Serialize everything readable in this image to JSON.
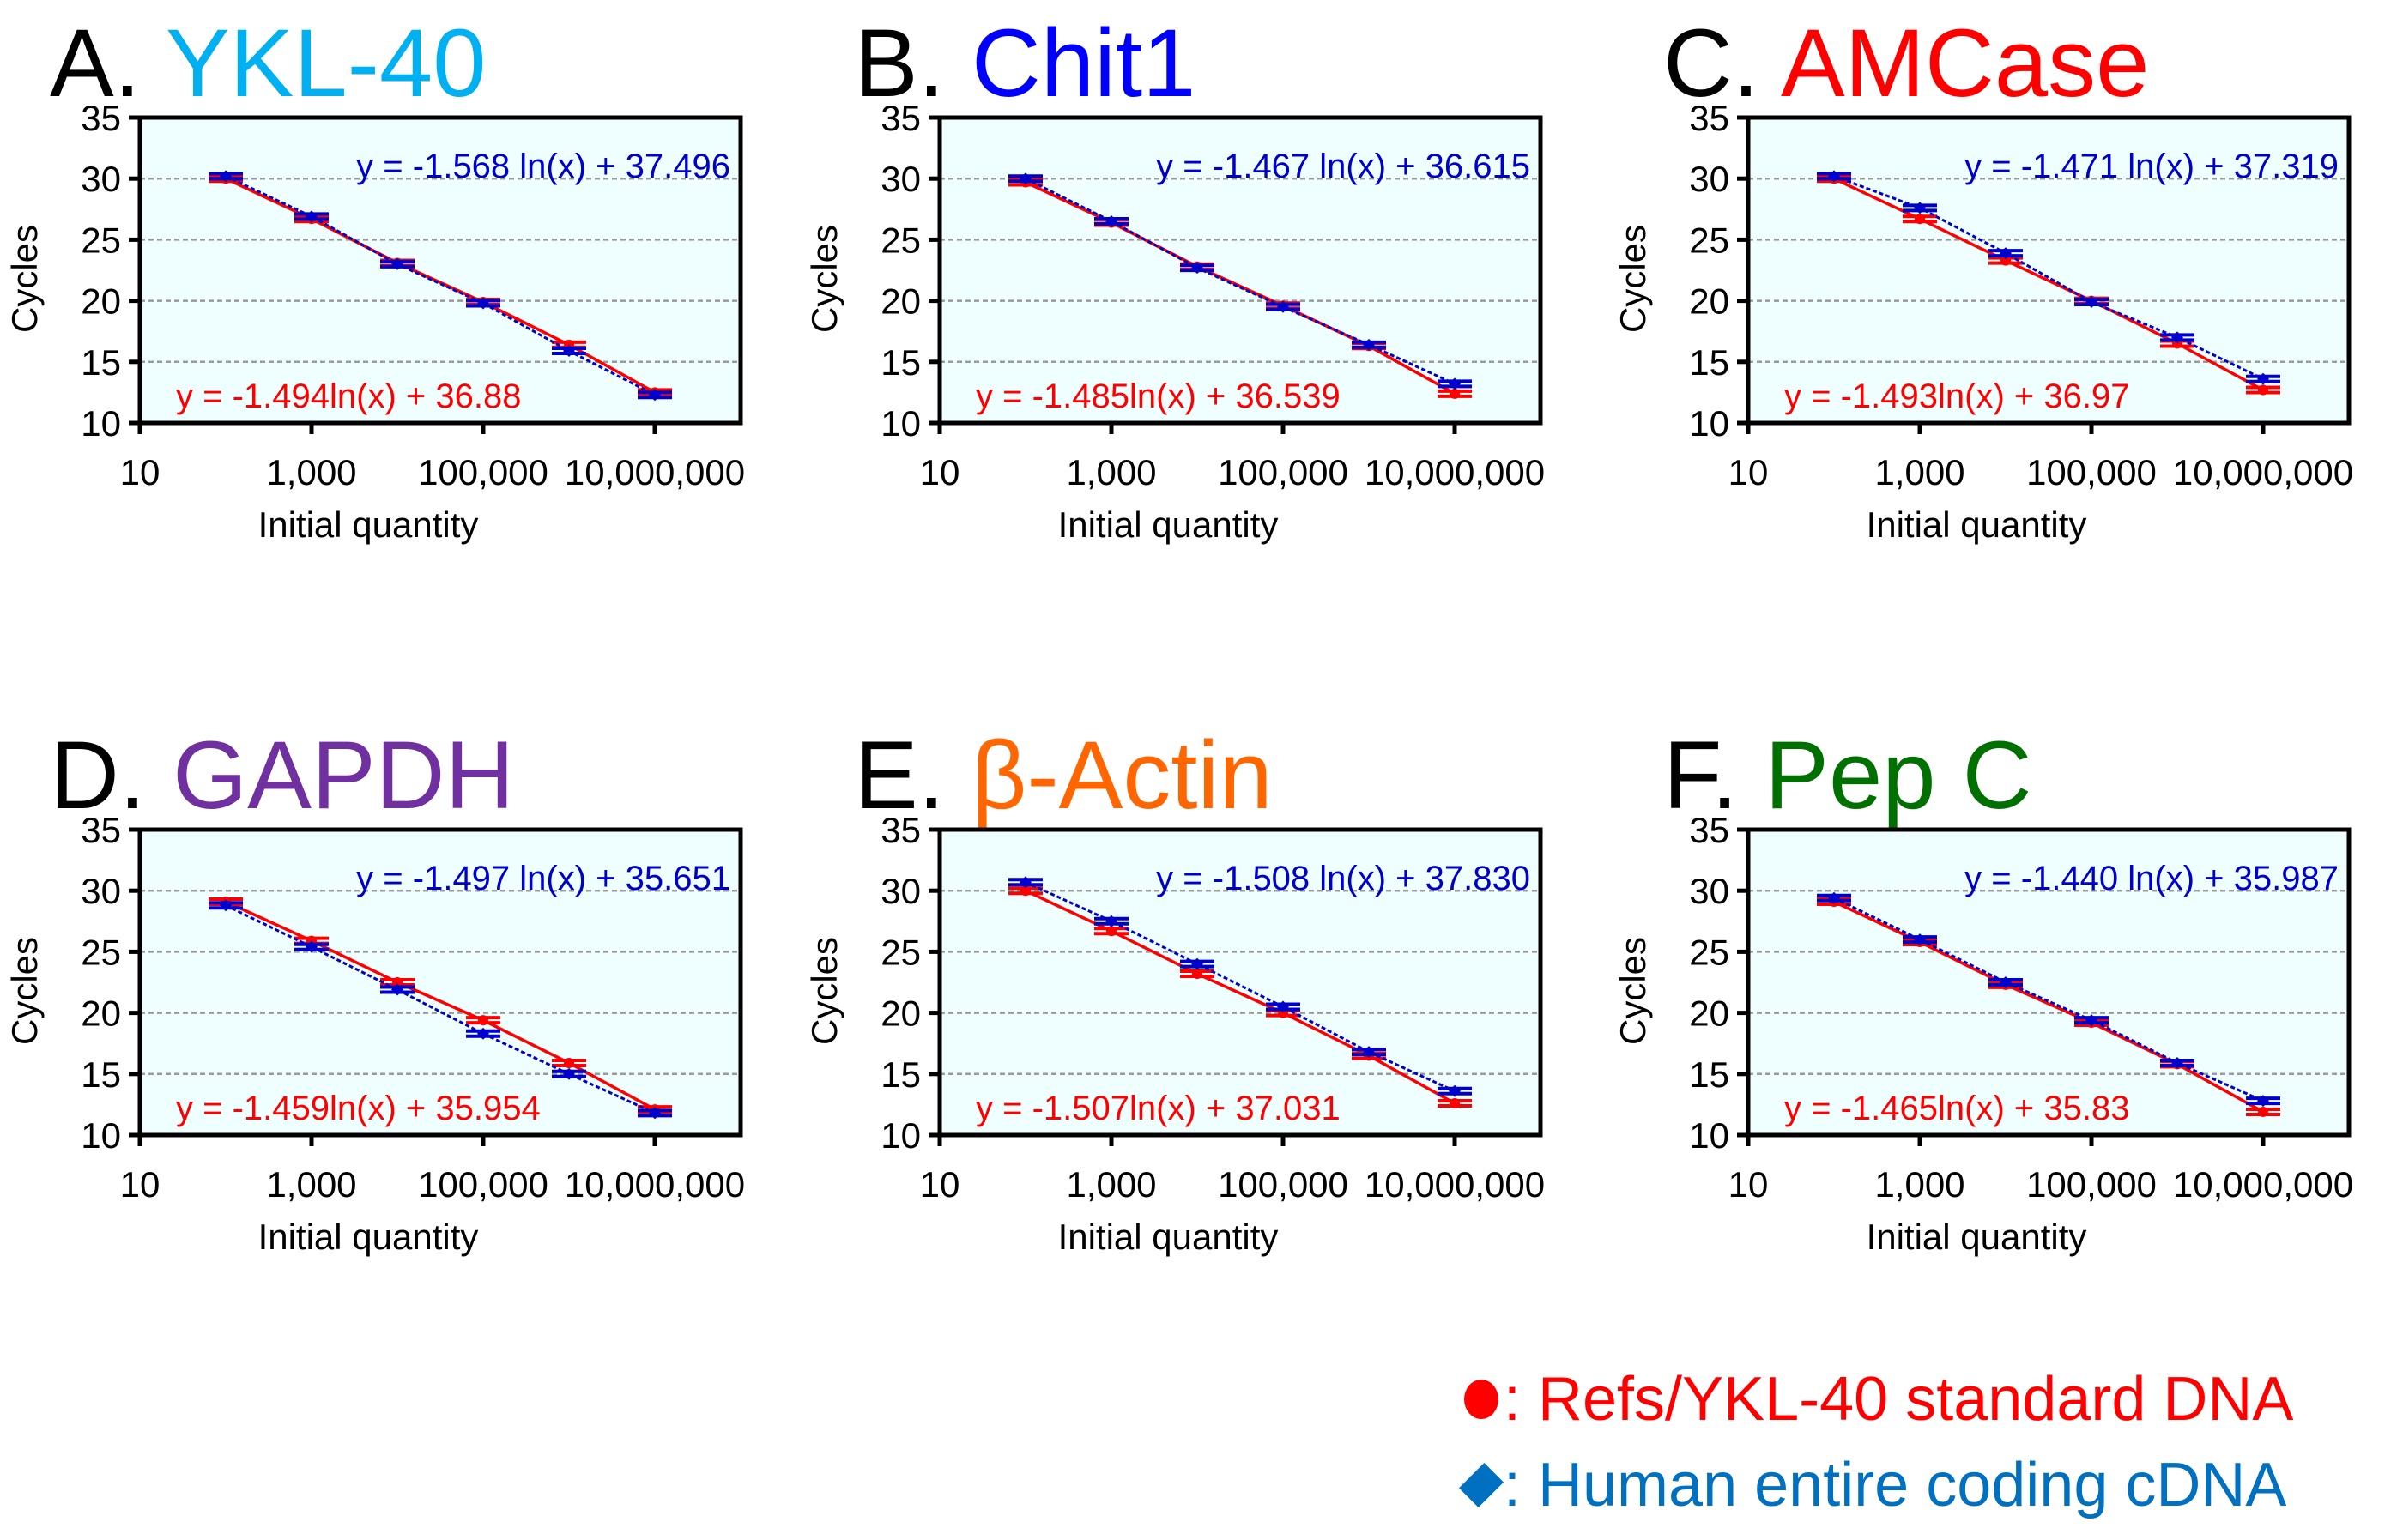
{
  "figure": {
    "panels": [
      {
        "letter": "A.",
        "gene": "YKL-40",
        "gene_color": "#00b0f0"
      },
      {
        "letter": "B.",
        "gene": "Chit1",
        "gene_color": "#0000ff"
      },
      {
        "letter": "C.",
        "gene": "AMCase",
        "gene_color": "#ff0000"
      },
      {
        "letter": "D.",
        "gene": "GAPDH",
        "gene_color": "#7030a0"
      },
      {
        "letter": "E.",
        "gene": "β-Actin",
        "gene_color": "#ff6600"
      },
      {
        "letter": "F.",
        "gene": "Pep C",
        "gene_color": "#007000"
      }
    ],
    "legend": [
      {
        "symbol": "circle",
        "label": ": Refs/YKL-40 standard DNA",
        "color": "#ff0000"
      },
      {
        "symbol": "diamond",
        "label": ": Human entire coding cDNA",
        "color": "#0070c0"
      }
    ]
  },
  "chart_data": [
    {
      "type": "scatter",
      "title": "A. YKL-40",
      "xlabel": "Initial quantity",
      "ylabel": "Cycles",
      "xscale": "log",
      "xlim": [
        10,
        100000000
      ],
      "ylim": [
        10,
        35
      ],
      "xticks": [
        10,
        1000,
        100000,
        10000000
      ],
      "xtick_labels": [
        "10",
        "1,000",
        "100,000",
        "10,000,000"
      ],
      "yticks": [
        10,
        15,
        20,
        25,
        30,
        35
      ],
      "ytick_labels": [
        "10",
        "15",
        "20",
        "25",
        "30",
        "35"
      ],
      "grid": "horizontal-dashed",
      "x": [
        100,
        1000,
        10000,
        100000,
        1000000,
        10000000
      ],
      "series": [
        {
          "name": "Refs/YKL-40 standard DNA",
          "color": "#ff0000",
          "marker": "circle",
          "line": "solid",
          "values": [
            30.0,
            26.7,
            23.1,
            19.9,
            16.4,
            12.5
          ],
          "fit": {
            "slope": -1.494,
            "intercept": 36.88
          },
          "equation": "y = -1.494ln(x) + 36.88"
        },
        {
          "name": "Human entire coding cDNA",
          "color": "#0000cc",
          "marker": "diamond",
          "line": "dotted",
          "values": [
            30.2,
            26.9,
            23.0,
            19.8,
            15.9,
            12.3
          ],
          "fit": {
            "slope": -1.568,
            "intercept": 37.496
          },
          "equation": "y = -1.568 ln(x) + 37.496"
        }
      ]
    },
    {
      "type": "scatter",
      "title": "B. Chit1",
      "xlabel": "Initial quantity",
      "ylabel": "Cycles",
      "xscale": "log",
      "xlim": [
        10,
        100000000
      ],
      "ylim": [
        10,
        35
      ],
      "xticks": [
        10,
        1000,
        100000,
        10000000
      ],
      "xtick_labels": [
        "10",
        "1,000",
        "100,000",
        "10,000,000"
      ],
      "yticks": [
        10,
        15,
        20,
        25,
        30,
        35
      ],
      "ytick_labels": [
        "10",
        "15",
        "20",
        "25",
        "30",
        "35"
      ],
      "grid": "horizontal-dashed",
      "x": [
        100,
        1000,
        10000,
        100000,
        1000000,
        10000000
      ],
      "series": [
        {
          "name": "Refs/YKL-40 standard DNA",
          "color": "#ff0000",
          "marker": "circle",
          "line": "solid",
          "values": [
            29.7,
            26.4,
            22.8,
            19.6,
            16.3,
            12.4
          ],
          "fit": {
            "slope": -1.485,
            "intercept": 36.539
          },
          "equation": "y = -1.485ln(x) + 36.539"
        },
        {
          "name": "Human entire coding cDNA",
          "color": "#0000cc",
          "marker": "diamond",
          "line": "dotted",
          "values": [
            30.0,
            26.5,
            22.7,
            19.5,
            16.4,
            13.2
          ],
          "fit": {
            "slope": -1.467,
            "intercept": 36.615
          },
          "equation": "y = -1.467 ln(x) + 36.615"
        }
      ]
    },
    {
      "type": "scatter",
      "title": "C. AMCase",
      "xlabel": "Initial quantity",
      "ylabel": "Cycles",
      "xscale": "log",
      "xlim": [
        10,
        100000000
      ],
      "ylim": [
        10,
        35
      ],
      "xticks": [
        10,
        1000,
        100000,
        10000000
      ],
      "xtick_labels": [
        "10",
        "1,000",
        "100,000",
        "10,000,000"
      ],
      "yticks": [
        10,
        15,
        20,
        25,
        30,
        35
      ],
      "ytick_labels": [
        "10",
        "15",
        "20",
        "25",
        "30",
        "35"
      ],
      "grid": "horizontal-dashed",
      "x": [
        100,
        1000,
        10000,
        100000,
        1000000,
        10000000
      ],
      "series": [
        {
          "name": "Refs/YKL-40 standard DNA",
          "color": "#ff0000",
          "marker": "circle",
          "line": "solid",
          "values": [
            30.0,
            26.7,
            23.3,
            20.0,
            16.5,
            12.7
          ],
          "fit": {
            "slope": -1.493,
            "intercept": 36.97
          },
          "equation": "y = -1.493ln(x) + 36.97"
        },
        {
          "name": "Human entire coding cDNA",
          "color": "#0000cc",
          "marker": "diamond",
          "line": "dotted",
          "values": [
            30.2,
            27.6,
            23.9,
            19.9,
            17.0,
            13.6
          ],
          "fit": {
            "slope": -1.471,
            "intercept": 37.319
          },
          "equation": "y = -1.471 ln(x) + 37.319"
        }
      ]
    },
    {
      "type": "scatter",
      "title": "D. GAPDH",
      "xlabel": "Initial quantity",
      "ylabel": "Cycles",
      "xscale": "log",
      "xlim": [
        10,
        100000000
      ],
      "ylim": [
        10,
        35
      ],
      "xticks": [
        10,
        1000,
        100000,
        10000000
      ],
      "xtick_labels": [
        "10",
        "1,000",
        "100,000",
        "10,000,000"
      ],
      "yticks": [
        10,
        15,
        20,
        25,
        30,
        35
      ],
      "ytick_labels": [
        "10",
        "15",
        "20",
        "25",
        "30",
        "35"
      ],
      "grid": "horizontal-dashed",
      "x": [
        100,
        1000,
        10000,
        100000,
        1000000,
        10000000
      ],
      "series": [
        {
          "name": "Refs/YKL-40 standard DNA",
          "color": "#ff0000",
          "marker": "circle",
          "line": "solid",
          "values": [
            29.1,
            25.9,
            22.5,
            19.4,
            15.9,
            12.1
          ],
          "fit": {
            "slope": -1.459,
            "intercept": 35.954
          },
          "equation": "y = -1.459ln(x) + 35.954"
        },
        {
          "name": "Human entire coding cDNA",
          "color": "#0000cc",
          "marker": "diamond",
          "line": "dotted",
          "values": [
            28.8,
            25.4,
            21.9,
            18.3,
            15.0,
            11.8
          ],
          "fit": {
            "slope": -1.497,
            "intercept": 35.651
          },
          "equation": "y = -1.497 ln(x) + 35.651"
        }
      ]
    },
    {
      "type": "scatter",
      "title": "E. β-Actin",
      "xlabel": "Initial quantity",
      "ylabel": "Cycles",
      "xscale": "log",
      "xlim": [
        10,
        100000000
      ],
      "ylim": [
        10,
        35
      ],
      "xticks": [
        10,
        1000,
        100000,
        10000000
      ],
      "xtick_labels": [
        "10",
        "1,000",
        "100,000",
        "10,000,000"
      ],
      "yticks": [
        10,
        15,
        20,
        25,
        30,
        35
      ],
      "ytick_labels": [
        "10",
        "15",
        "20",
        "25",
        "30",
        "35"
      ],
      "grid": "horizontal-dashed",
      "x": [
        100,
        1000,
        10000,
        100000,
        1000000,
        10000000
      ],
      "series": [
        {
          "name": "Refs/YKL-40 standard DNA",
          "color": "#ff0000",
          "marker": "circle",
          "line": "solid",
          "values": [
            30.0,
            26.7,
            23.2,
            20.0,
            16.5,
            12.6
          ],
          "fit": {
            "slope": -1.507,
            "intercept": 37.031
          },
          "equation": "y = -1.507ln(x) + 37.031"
        },
        {
          "name": "Human entire coding cDNA",
          "color": "#0000cc",
          "marker": "diamond",
          "line": "dotted",
          "values": [
            30.7,
            27.5,
            24.0,
            20.5,
            16.8,
            13.6
          ],
          "fit": {
            "slope": -1.508,
            "intercept": 37.83
          },
          "equation": "y = -1.508 ln(x) + 37.830"
        }
      ]
    },
    {
      "type": "scatter",
      "title": "F. Pep C",
      "xlabel": "Initial quantity",
      "ylabel": "Cycles",
      "xscale": "log",
      "xlim": [
        10,
        100000000
      ],
      "ylim": [
        10,
        35
      ],
      "xticks": [
        10,
        1000,
        100000,
        10000000
      ],
      "xtick_labels": [
        "10",
        "1,000",
        "100,000",
        "10,000,000"
      ],
      "yticks": [
        10,
        15,
        20,
        25,
        30,
        35
      ],
      "ytick_labels": [
        "10",
        "15",
        "20",
        "25",
        "30",
        "35"
      ],
      "grid": "horizontal-dashed",
      "x": [
        100,
        1000,
        10000,
        100000,
        1000000,
        10000000
      ],
      "series": [
        {
          "name": "Refs/YKL-40 standard DNA",
          "color": "#ff0000",
          "marker": "circle",
          "line": "solid",
          "values": [
            29.1,
            25.8,
            22.3,
            19.2,
            15.8,
            11.9
          ],
          "fit": {
            "slope": -1.465,
            "intercept": 35.83
          },
          "equation": "y = -1.465ln(x) + 35.83"
        },
        {
          "name": "Human entire coding cDNA",
          "color": "#0000cc",
          "marker": "diamond",
          "line": "dotted",
          "values": [
            29.4,
            26.0,
            22.5,
            19.4,
            15.9,
            12.8
          ],
          "fit": {
            "slope": -1.44,
            "intercept": 35.987
          },
          "equation": "y = -1.440 ln(x) + 35.987"
        }
      ]
    }
  ]
}
